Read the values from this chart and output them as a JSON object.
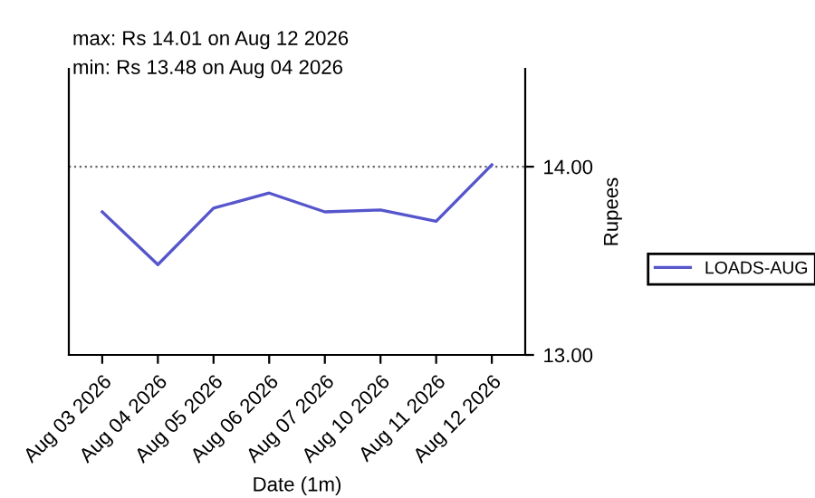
{
  "chart_data": {
    "type": "line",
    "xlabel": "Date (1m)",
    "ylabel": "Rupees",
    "annotations": [
      "max: Rs 14.01 on Aug 12 2026",
      "min: Rs 13.48 on Aug 04 2026"
    ],
    "categories": [
      "Aug 03 2026",
      "Aug 04 2026",
      "Aug 05 2026",
      "Aug 06 2026",
      "Aug 07 2026",
      "Aug 10 2026",
      "Aug 11 2026",
      "Aug 12 2026"
    ],
    "series": [
      {
        "name": "LOADS-AUG",
        "color": "#5555cc",
        "values": [
          13.76,
          13.48,
          13.78,
          13.86,
          13.76,
          13.77,
          13.71,
          14.01
        ]
      }
    ],
    "ylim": [
      13.0,
      14.52
    ],
    "yticks": [
      {
        "value": 13,
        "label": "13.00"
      },
      {
        "value": 14,
        "label": "14.00"
      }
    ],
    "grid": "y",
    "legend": "right",
    "marker": "none",
    "line_style": "solid"
  }
}
